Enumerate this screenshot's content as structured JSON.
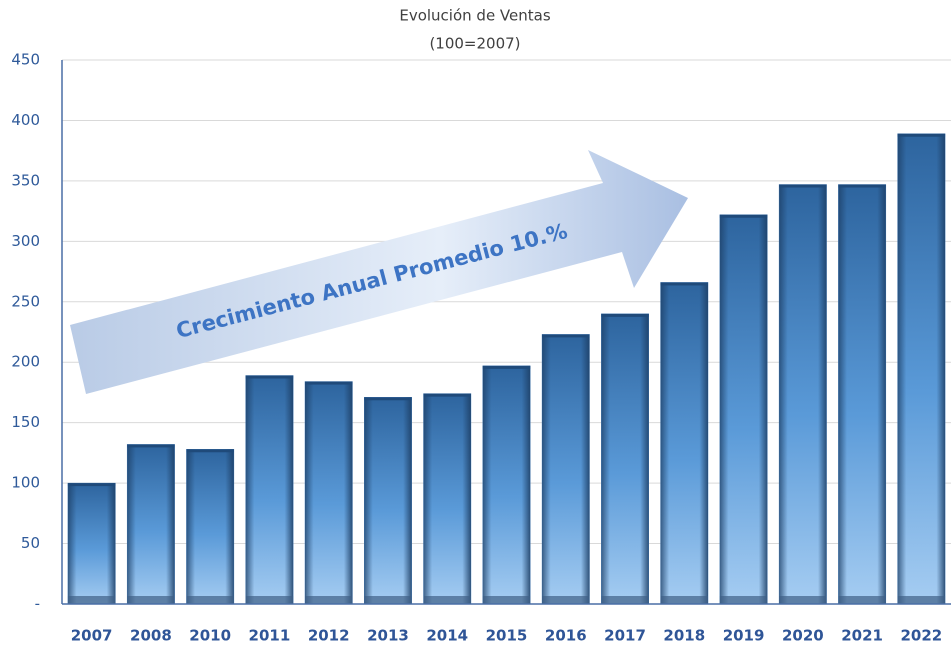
{
  "chart_data": {
    "type": "bar",
    "title": "Evolución de Ventas",
    "subtitle": "(100=2007)",
    "annotation": "Crecimiento Anual Promedio 10.%",
    "categories": [
      "2007",
      "2008",
      "2010",
      "2011",
      "2012",
      "2013",
      "2014",
      "2015",
      "2016",
      "2017",
      "2018",
      "2019",
      "2020",
      "2021",
      "2022"
    ],
    "values": [
      100,
      132,
      128,
      189,
      184,
      171,
      174,
      197,
      223,
      240,
      266,
      322,
      347,
      347,
      389
    ],
    "color": "#4a86c6",
    "ylim": [
      0,
      450
    ],
    "yticks": [
      {
        "value": 0,
        "label": "-"
      },
      50,
      100,
      150,
      200,
      250,
      300,
      350,
      400,
      450
    ],
    "grid": true
  }
}
